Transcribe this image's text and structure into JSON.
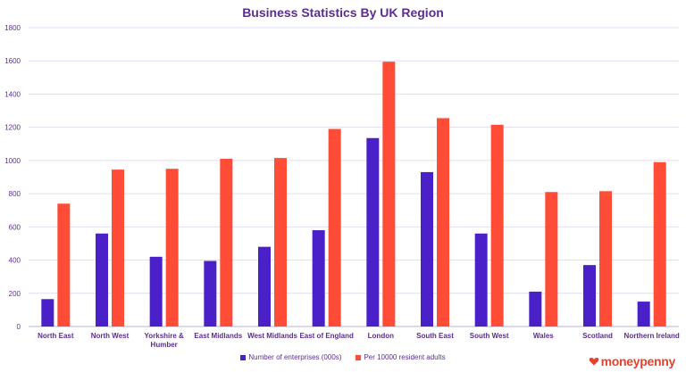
{
  "chart_data": {
    "type": "bar",
    "title": "Business Statistics By UK Region",
    "xlabel": "",
    "ylabel": "",
    "ylim": [
      0,
      1800
    ],
    "yticks": [
      0,
      200,
      400,
      600,
      800,
      1000,
      1200,
      1400,
      1600,
      1800
    ],
    "grid": true,
    "legend_position": "bottom",
    "categories": [
      "North East",
      "North West",
      "Yorkshire & Humber",
      "East Midlands",
      "West Midlands",
      "East of England",
      "London",
      "South East",
      "South West",
      "Wales",
      "Scotland",
      "Northern Ireland"
    ],
    "series": [
      {
        "name": "Number of enterprises (000s)",
        "color": "#4a21c8",
        "values": [
          165,
          560,
          420,
          395,
          480,
          580,
          1135,
          930,
          560,
          210,
          370,
          150
        ]
      },
      {
        "name": "Per 10000 resident adults",
        "color": "#ff4c37",
        "values": [
          740,
          945,
          950,
          1010,
          1015,
          1190,
          1595,
          1255,
          1215,
          810,
          815,
          990
        ]
      }
    ]
  },
  "brand": {
    "name": "moneypenny",
    "icon": "heart-icon",
    "color": "#e8412c"
  }
}
